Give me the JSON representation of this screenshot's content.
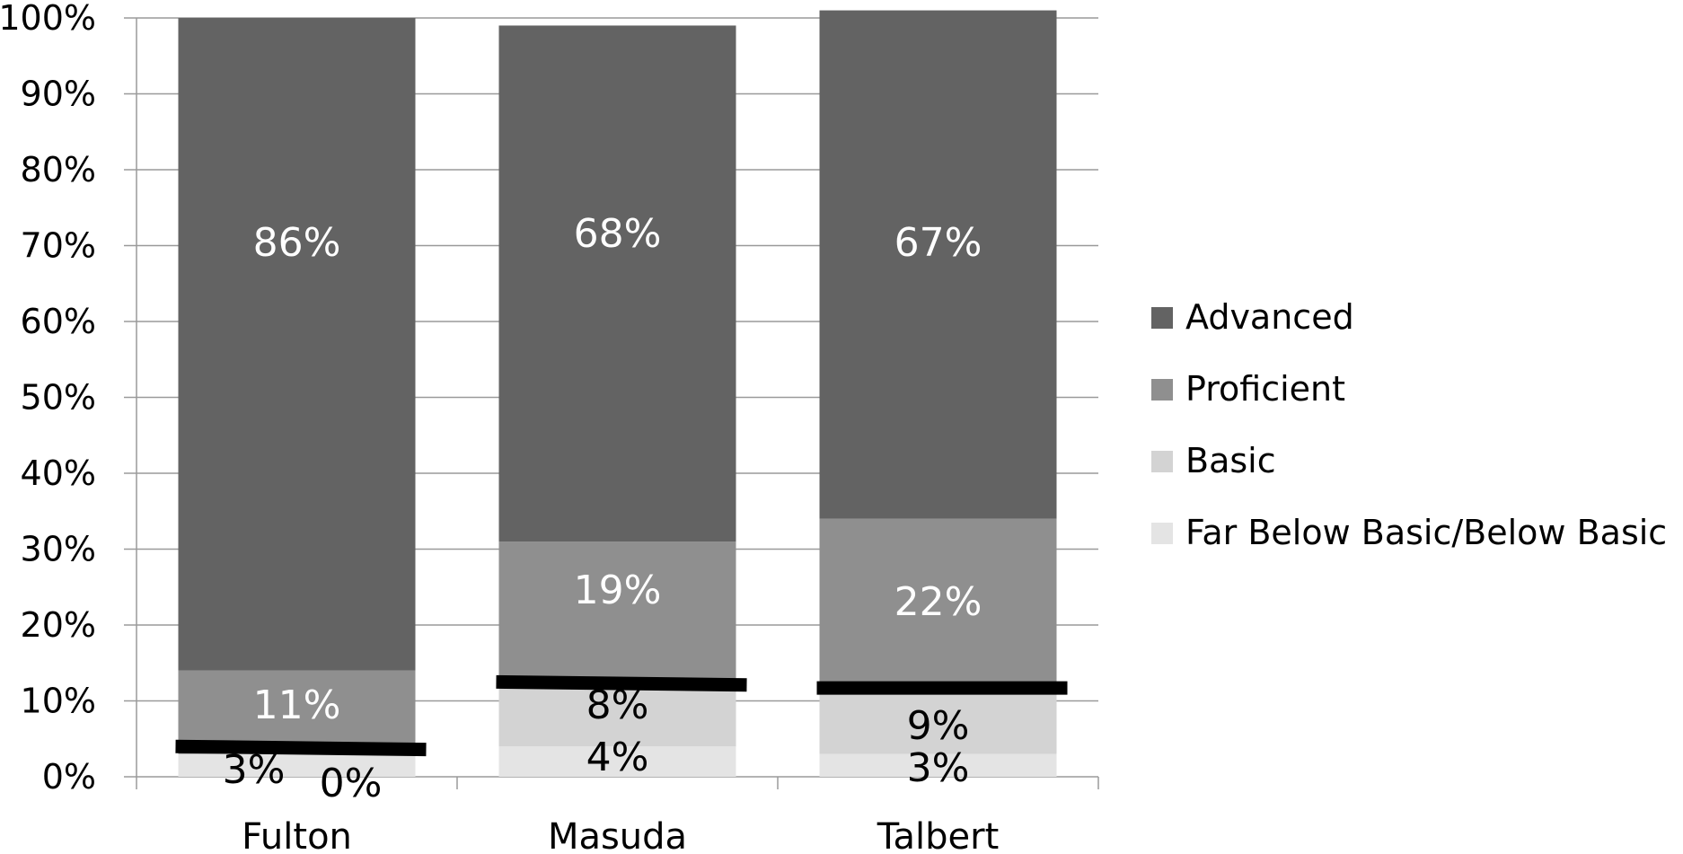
{
  "chart_data": {
    "type": "bar",
    "stacked": true,
    "percent_stacked": true,
    "categories": [
      "Fulton",
      "Masuda",
      "Talbert"
    ],
    "series": [
      {
        "name": "Far Below Basic/Below Basic",
        "values": [
          3,
          4,
          3
        ],
        "labels": [
          "3%",
          "4%",
          "3%"
        ],
        "color": "#e4e4e4",
        "label_color": "#000000"
      },
      {
        "name": "Basic",
        "values": [
          0,
          8,
          9
        ],
        "labels": [
          "0%",
          "8%",
          "9%"
        ],
        "color": "#d3d3d3",
        "label_color": "#000000"
      },
      {
        "name": "Proficient",
        "values": [
          11,
          19,
          22
        ],
        "labels": [
          "11%",
          "19%",
          "22%"
        ],
        "color": "#8f8f8f",
        "label_color": "#ffffff"
      },
      {
        "name": "Advanced",
        "values": [
          86,
          68,
          67
        ],
        "labels": [
          "86%",
          "68%",
          "67%"
        ],
        "color": "#636363",
        "label_color": "#ffffff"
      }
    ],
    "y_ticks": [
      "0%",
      "10%",
      "20%",
      "30%",
      "40%",
      "50%",
      "60%",
      "70%",
      "80%",
      "90%",
      "100%"
    ],
    "ylim": [
      0,
      100
    ],
    "grid": true,
    "legend_position": "right",
    "legend_order": [
      "Advanced",
      "Proficient",
      "Basic",
      "Far Below Basic/Below Basic"
    ],
    "threshold_markers": {
      "color": "#000000",
      "values": [
        {
          "category": "Fulton",
          "start": 4.0,
          "end": 3.6
        },
        {
          "category": "Masuda",
          "start": 12.5,
          "end": 12.1
        },
        {
          "category": "Talbert",
          "start": 11.7,
          "end": 11.7
        }
      ]
    },
    "title": "",
    "xlabel": "",
    "ylabel": ""
  }
}
